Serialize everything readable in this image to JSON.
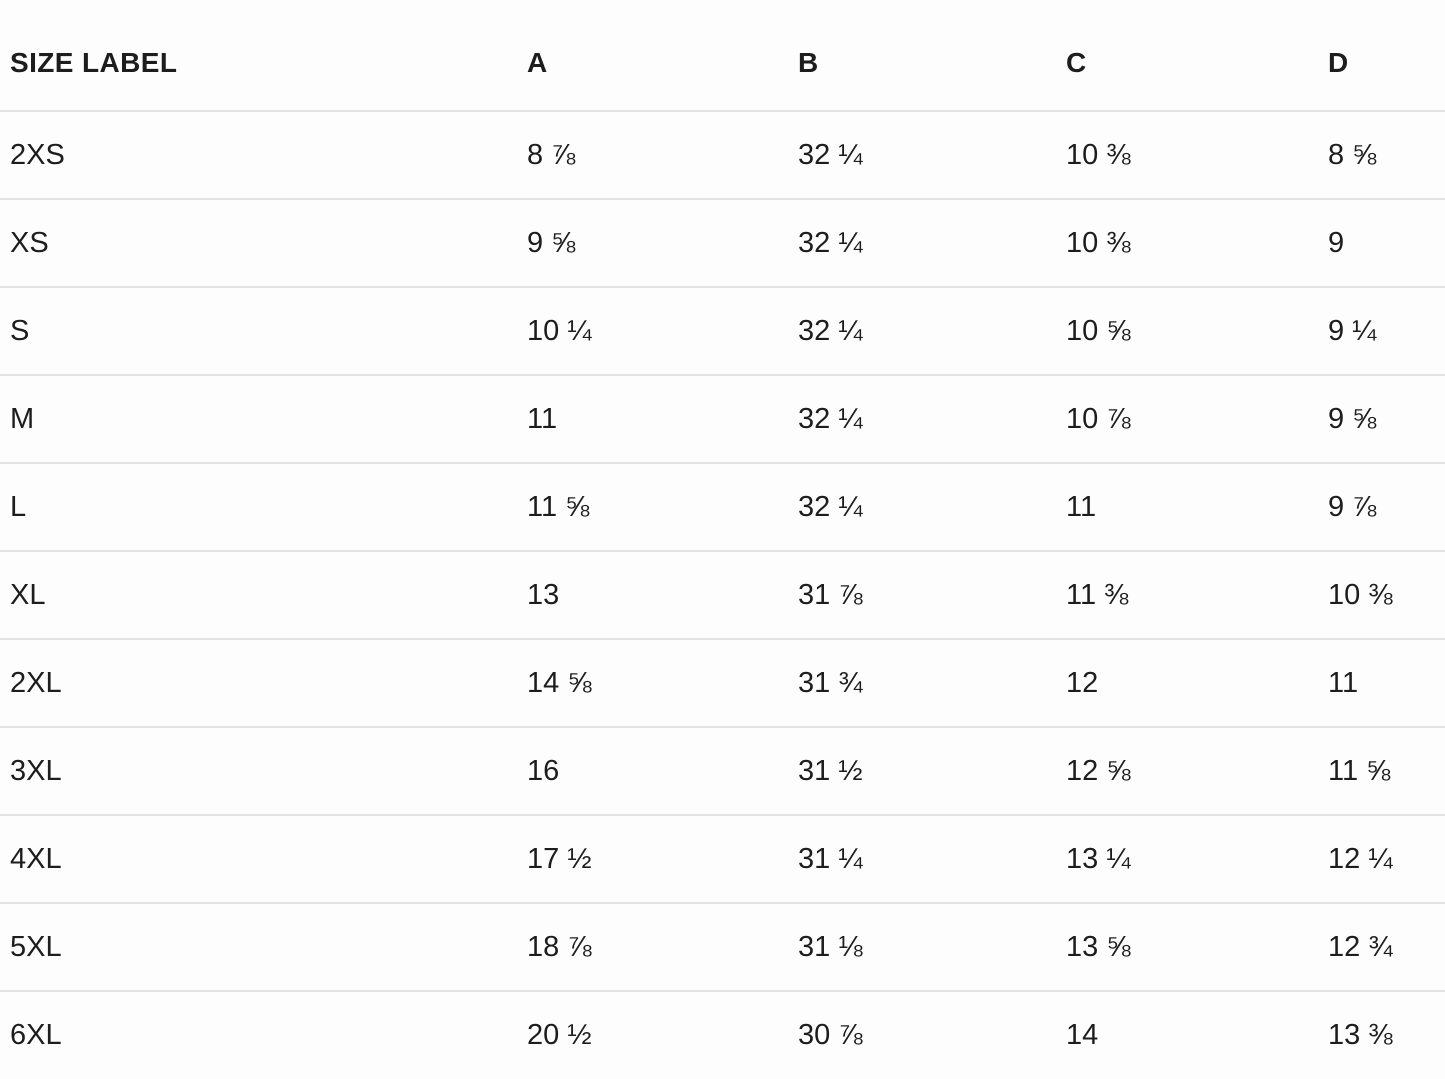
{
  "table": {
    "columns": [
      "SIZE LABEL",
      "A",
      "B",
      "C",
      "D"
    ],
    "rows": [
      {
        "label": "2XS",
        "values": [
          "8 ⅞",
          "32 ¼",
          "10 ⅜",
          "8 ⅝"
        ]
      },
      {
        "label": "XS",
        "values": [
          "9 ⅝",
          "32 ¼",
          "10 ⅜",
          "9"
        ]
      },
      {
        "label": "S",
        "values": [
          "10 ¼",
          "32 ¼",
          "10 ⅝",
          "9 ¼"
        ]
      },
      {
        "label": "M",
        "values": [
          "11",
          "32 ¼",
          "10 ⅞",
          "9 ⅝"
        ]
      },
      {
        "label": "L",
        "values": [
          "11 ⅝",
          "32 ¼",
          "11",
          "9 ⅞"
        ]
      },
      {
        "label": "XL",
        "values": [
          "13",
          "31 ⅞",
          "11 ⅜",
          "10 ⅜"
        ]
      },
      {
        "label": "2XL",
        "values": [
          "14 ⅝",
          "31 ¾",
          "12",
          "11"
        ]
      },
      {
        "label": "3XL",
        "values": [
          "16",
          "31 ½",
          "12 ⅝",
          "11 ⅝"
        ]
      },
      {
        "label": "4XL",
        "values": [
          "17 ½",
          "31 ¼",
          "13 ¼",
          "12 ¼"
        ]
      },
      {
        "label": "5XL",
        "values": [
          "18 ⅞",
          "31 ⅛",
          "13 ⅝",
          "12 ¾"
        ]
      },
      {
        "label": "6XL",
        "values": [
          "20 ½",
          "30 ⅞",
          "14",
          "13 ⅜"
        ]
      }
    ]
  },
  "colors": {
    "background": "#fdfdfd",
    "text": "#1d1d1d",
    "divider": "#e4e4e4"
  }
}
